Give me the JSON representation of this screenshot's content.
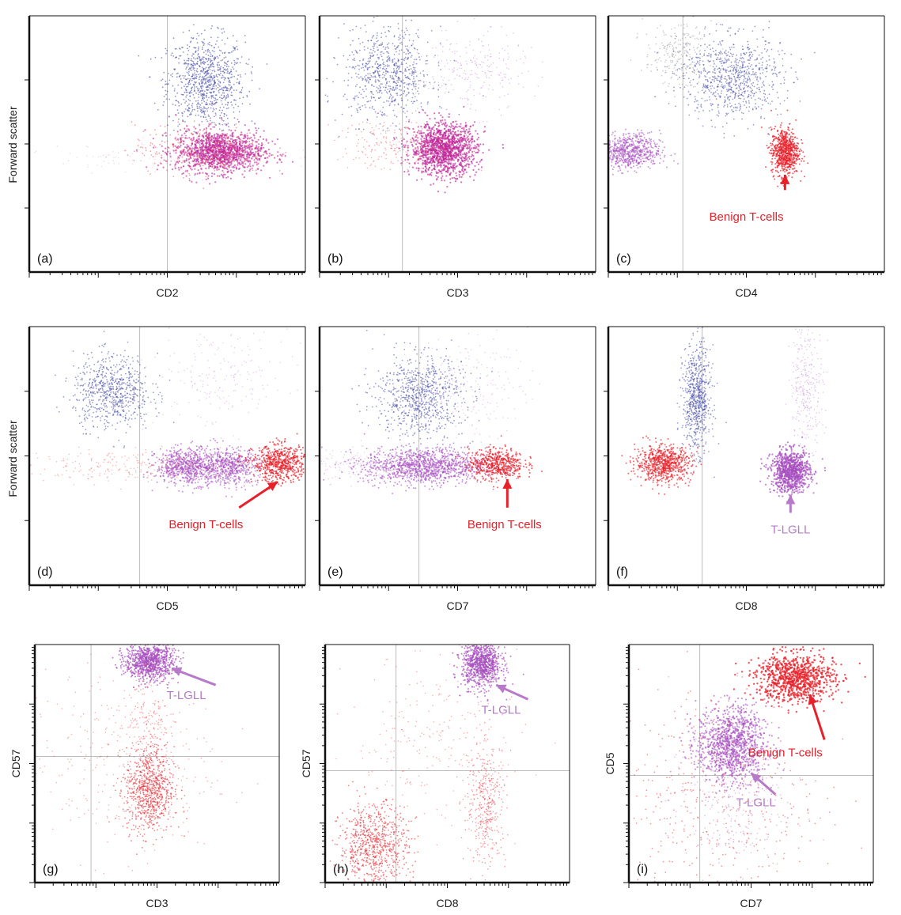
{
  "figure": {
    "y_label_forward_scatter": "Forward scatter",
    "colors": {
      "blue": "#3a3f9e",
      "magenta": "#c0269a",
      "purple": "#a64fbf",
      "red": "#e8202a",
      "gray": "#777777",
      "lavender": "#b77ac8",
      "axis": "#111111",
      "gate": "#bdbdbd"
    }
  },
  "chart_data": [
    {
      "type": "scatter",
      "id": "a",
      "panel_label": "(a)",
      "xlabel": "CD2",
      "ylabel": "Forward scatter",
      "xlim": [
        0,
        1
      ],
      "ylim": [
        0,
        1
      ],
      "gate_x": 0.5,
      "populations": [
        {
          "color": "blue",
          "cx": 0.64,
          "cy": 0.74,
          "sx": 0.07,
          "sy": 0.09,
          "n": 900,
          "r": 0.9,
          "op": 0.55
        },
        {
          "color": "magenta",
          "cx": 0.69,
          "cy": 0.47,
          "sx": 0.08,
          "sy": 0.04,
          "n": 1300,
          "r": 1.1,
          "op": 0.6
        },
        {
          "color": "red",
          "cx": 0.62,
          "cy": 0.48,
          "sx": 0.12,
          "sy": 0.05,
          "n": 300,
          "r": 0.9,
          "op": 0.4
        },
        {
          "color": "lavender",
          "cx": 0.5,
          "cy": 0.45,
          "sx": 0.2,
          "sy": 0.03,
          "n": 150,
          "r": 0.8,
          "op": 0.25
        }
      ],
      "annotations": []
    },
    {
      "type": "scatter",
      "id": "b",
      "panel_label": "(b)",
      "xlabel": "CD3",
      "ylabel": "",
      "xlim": [
        0,
        1
      ],
      "ylim": [
        0,
        1
      ],
      "gate_x": 0.3,
      "populations": [
        {
          "color": "blue",
          "cx": 0.25,
          "cy": 0.77,
          "sx": 0.08,
          "sy": 0.09,
          "n": 700,
          "r": 0.9,
          "op": 0.5
        },
        {
          "color": "purple",
          "cx": 0.55,
          "cy": 0.78,
          "sx": 0.1,
          "sy": 0.08,
          "n": 250,
          "r": 0.8,
          "op": 0.3
        },
        {
          "color": "magenta",
          "cx": 0.45,
          "cy": 0.48,
          "sx": 0.06,
          "sy": 0.05,
          "n": 1300,
          "r": 1.1,
          "op": 0.65
        },
        {
          "color": "red",
          "cx": 0.3,
          "cy": 0.5,
          "sx": 0.12,
          "sy": 0.05,
          "n": 250,
          "r": 0.8,
          "op": 0.35
        }
      ],
      "annotations": []
    },
    {
      "type": "scatter",
      "id": "c",
      "panel_label": "(c)",
      "xlabel": "CD4",
      "ylabel": "",
      "xlim": [
        0,
        1
      ],
      "ylim": [
        0,
        1
      ],
      "gate_x": 0.27,
      "populations": [
        {
          "color": "blue",
          "cx": 0.45,
          "cy": 0.76,
          "sx": 0.09,
          "sy": 0.08,
          "n": 800,
          "r": 0.9,
          "op": 0.5
        },
        {
          "color": "gray",
          "cx": 0.25,
          "cy": 0.85,
          "sx": 0.06,
          "sy": 0.06,
          "n": 250,
          "r": 0.8,
          "op": 0.4
        },
        {
          "color": "purple",
          "cx": 0.07,
          "cy": 0.47,
          "sx": 0.06,
          "sy": 0.035,
          "n": 700,
          "r": 1.0,
          "op": 0.55
        },
        {
          "color": "red",
          "cx": 0.64,
          "cy": 0.47,
          "sx": 0.025,
          "sy": 0.045,
          "n": 700,
          "r": 1.0,
          "op": 0.7
        }
      ],
      "annotations": [
        {
          "text": "Benign T-cells",
          "color": "red",
          "tx": 0.5,
          "ty": 0.2,
          "ax1": 0.64,
          "ay1": 0.32,
          "ax2": 0.64,
          "ay2": 0.38
        }
      ]
    },
    {
      "type": "scatter",
      "id": "d",
      "panel_label": "(d)",
      "xlabel": "CD5",
      "ylabel": "Forward scatter",
      "xlim": [
        0,
        1
      ],
      "ylim": [
        0,
        1
      ],
      "gate_x": 0.4,
      "populations": [
        {
          "color": "blue",
          "cx": 0.3,
          "cy": 0.75,
          "sx": 0.07,
          "sy": 0.07,
          "n": 700,
          "r": 0.9,
          "op": 0.5
        },
        {
          "color": "purple",
          "cx": 0.7,
          "cy": 0.8,
          "sx": 0.12,
          "sy": 0.1,
          "n": 200,
          "r": 0.8,
          "op": 0.25
        },
        {
          "color": "purple",
          "cx": 0.58,
          "cy": 0.46,
          "sx": 0.06,
          "sy": 0.035,
          "n": 700,
          "r": 1.0,
          "op": 0.6
        },
        {
          "color": "purple",
          "cx": 0.73,
          "cy": 0.46,
          "sx": 0.05,
          "sy": 0.035,
          "n": 500,
          "r": 1.0,
          "op": 0.55
        },
        {
          "color": "red",
          "cx": 0.91,
          "cy": 0.47,
          "sx": 0.05,
          "sy": 0.035,
          "n": 600,
          "r": 1.0,
          "op": 0.7
        },
        {
          "color": "red",
          "cx": 0.4,
          "cy": 0.46,
          "sx": 0.2,
          "sy": 0.03,
          "n": 250,
          "r": 0.8,
          "op": 0.3
        }
      ],
      "annotations": [
        {
          "text": "Benign T-cells",
          "color": "red",
          "tx": 0.64,
          "ty": 0.22,
          "ax1": 0.76,
          "ay1": 0.3,
          "ax2": 0.9,
          "ay2": 0.4
        }
      ]
    },
    {
      "type": "scatter",
      "id": "e",
      "panel_label": "(e)",
      "xlabel": "CD7",
      "ylabel": "",
      "xlim": [
        0,
        1
      ],
      "ylim": [
        0,
        1
      ],
      "gate_x": 0.36,
      "populations": [
        {
          "color": "blue",
          "cx": 0.36,
          "cy": 0.73,
          "sx": 0.08,
          "sy": 0.08,
          "n": 800,
          "r": 0.9,
          "op": 0.5
        },
        {
          "color": "purple",
          "cx": 0.55,
          "cy": 0.78,
          "sx": 0.1,
          "sy": 0.1,
          "n": 200,
          "r": 0.8,
          "op": 0.25
        },
        {
          "color": "purple",
          "cx": 0.38,
          "cy": 0.46,
          "sx": 0.11,
          "sy": 0.035,
          "n": 1100,
          "r": 1.0,
          "op": 0.6
        },
        {
          "color": "red",
          "cx": 0.64,
          "cy": 0.47,
          "sx": 0.05,
          "sy": 0.03,
          "n": 500,
          "r": 1.0,
          "op": 0.7
        },
        {
          "color": "lavender",
          "cx": 0.2,
          "cy": 0.46,
          "sx": 0.12,
          "sy": 0.03,
          "n": 250,
          "r": 0.8,
          "op": 0.3
        }
      ],
      "annotations": [
        {
          "text": "Benign T-cells",
          "color": "red",
          "tx": 0.67,
          "ty": 0.22,
          "ax1": 0.68,
          "ay1": 0.3,
          "ax2": 0.68,
          "ay2": 0.41
        }
      ]
    },
    {
      "type": "scatter",
      "id": "f",
      "panel_label": "(f)",
      "xlabel": "CD8",
      "ylabel": "",
      "xlim": [
        0,
        1
      ],
      "ylim": [
        0,
        1
      ],
      "gate_x": 0.34,
      "populations": [
        {
          "color": "blue",
          "cx": 0.32,
          "cy": 0.72,
          "sx": 0.025,
          "sy": 0.1,
          "n": 700,
          "r": 0.9,
          "op": 0.5
        },
        {
          "color": "purple",
          "cx": 0.72,
          "cy": 0.78,
          "sx": 0.03,
          "sy": 0.12,
          "n": 300,
          "r": 0.8,
          "op": 0.3
        },
        {
          "color": "red",
          "cx": 0.2,
          "cy": 0.47,
          "sx": 0.05,
          "sy": 0.035,
          "n": 700,
          "r": 1.0,
          "op": 0.65
        },
        {
          "color": "purple",
          "cx": 0.66,
          "cy": 0.44,
          "sx": 0.035,
          "sy": 0.04,
          "n": 900,
          "r": 1.1,
          "op": 0.7
        }
      ],
      "annotations": [
        {
          "text": "T-LGLL",
          "color": "lavender",
          "tx": 0.66,
          "ty": 0.2,
          "ax1": 0.66,
          "ay1": 0.28,
          "ax2": 0.66,
          "ay2": 0.35
        }
      ]
    },
    {
      "type": "scatter",
      "id": "g",
      "panel_label": "(g)",
      "xlabel": "CD3",
      "ylabel": "CD57",
      "xlim": [
        0,
        1
      ],
      "ylim": [
        0,
        1
      ],
      "gate_x": 0.23,
      "gate_y": 0.53,
      "populations": [
        {
          "color": "purple",
          "cx": 0.47,
          "cy": 0.93,
          "sx": 0.05,
          "sy": 0.04,
          "n": 900,
          "r": 1.0,
          "op": 0.7
        },
        {
          "color": "red",
          "cx": 0.47,
          "cy": 0.39,
          "sx": 0.05,
          "sy": 0.09,
          "n": 800,
          "r": 0.9,
          "op": 0.55
        },
        {
          "color": "red",
          "cx": 0.35,
          "cy": 0.5,
          "sx": 0.2,
          "sy": 0.2,
          "n": 350,
          "r": 0.8,
          "op": 0.35
        },
        {
          "color": "red",
          "cx": 0.47,
          "cy": 0.7,
          "sx": 0.04,
          "sy": 0.1,
          "n": 150,
          "r": 0.8,
          "op": 0.4
        }
      ],
      "annotations": [
        {
          "text": "T-LGLL",
          "color": "lavender",
          "tx": 0.62,
          "ty": 0.77,
          "ax1": 0.74,
          "ay1": 0.83,
          "ax2": 0.56,
          "ay2": 0.9
        }
      ]
    },
    {
      "type": "scatter",
      "id": "h",
      "panel_label": "(h)",
      "xlabel": "CD8",
      "ylabel": "CD57",
      "xlim": [
        0,
        1
      ],
      "ylim": [
        0,
        1
      ],
      "gate_x": 0.29,
      "gate_y": 0.47,
      "populations": [
        {
          "color": "purple",
          "cx": 0.64,
          "cy": 0.92,
          "sx": 0.04,
          "sy": 0.05,
          "n": 900,
          "r": 1.0,
          "op": 0.7
        },
        {
          "color": "red",
          "cx": 0.2,
          "cy": 0.15,
          "sx": 0.07,
          "sy": 0.09,
          "n": 800,
          "r": 0.9,
          "op": 0.55
        },
        {
          "color": "red",
          "cx": 0.66,
          "cy": 0.33,
          "sx": 0.04,
          "sy": 0.13,
          "n": 400,
          "r": 0.8,
          "op": 0.45
        },
        {
          "color": "red",
          "cx": 0.45,
          "cy": 0.6,
          "sx": 0.18,
          "sy": 0.18,
          "n": 250,
          "r": 0.8,
          "op": 0.35
        }
      ],
      "annotations": [
        {
          "text": "T-LGLL",
          "color": "lavender",
          "tx": 0.72,
          "ty": 0.71,
          "ax1": 0.83,
          "ay1": 0.77,
          "ax2": 0.7,
          "ay2": 0.83
        }
      ]
    },
    {
      "type": "scatter",
      "id": "i",
      "panel_label": "(i)",
      "xlabel": "CD7",
      "ylabel": "CD5",
      "xlim": [
        0,
        1
      ],
      "ylim": [
        0,
        1
      ],
      "gate_x": 0.29,
      "gate_y": 0.45,
      "populations": [
        {
          "color": "red",
          "cx": 0.68,
          "cy": 0.86,
          "sx": 0.08,
          "sy": 0.05,
          "n": 900,
          "r": 1.2,
          "op": 0.75
        },
        {
          "color": "purple",
          "cx": 0.42,
          "cy": 0.58,
          "sx": 0.07,
          "sy": 0.08,
          "n": 1100,
          "r": 1.1,
          "op": 0.6
        },
        {
          "color": "red",
          "cx": 0.35,
          "cy": 0.35,
          "sx": 0.22,
          "sy": 0.25,
          "n": 450,
          "r": 0.9,
          "op": 0.45
        },
        {
          "color": "lavender",
          "cx": 0.4,
          "cy": 0.33,
          "sx": 0.12,
          "sy": 0.15,
          "n": 250,
          "r": 0.9,
          "op": 0.4
        }
      ],
      "annotations": [
        {
          "text": "Benign T-cells",
          "color": "red",
          "tx": 0.64,
          "ty": 0.53,
          "ax1": 0.8,
          "ay1": 0.6,
          "ax2": 0.74,
          "ay2": 0.79
        },
        {
          "text": "T-LGLL",
          "color": "lavender",
          "tx": 0.52,
          "ty": 0.32,
          "ax1": 0.6,
          "ay1": 0.37,
          "ax2": 0.5,
          "ay2": 0.46
        }
      ]
    }
  ]
}
